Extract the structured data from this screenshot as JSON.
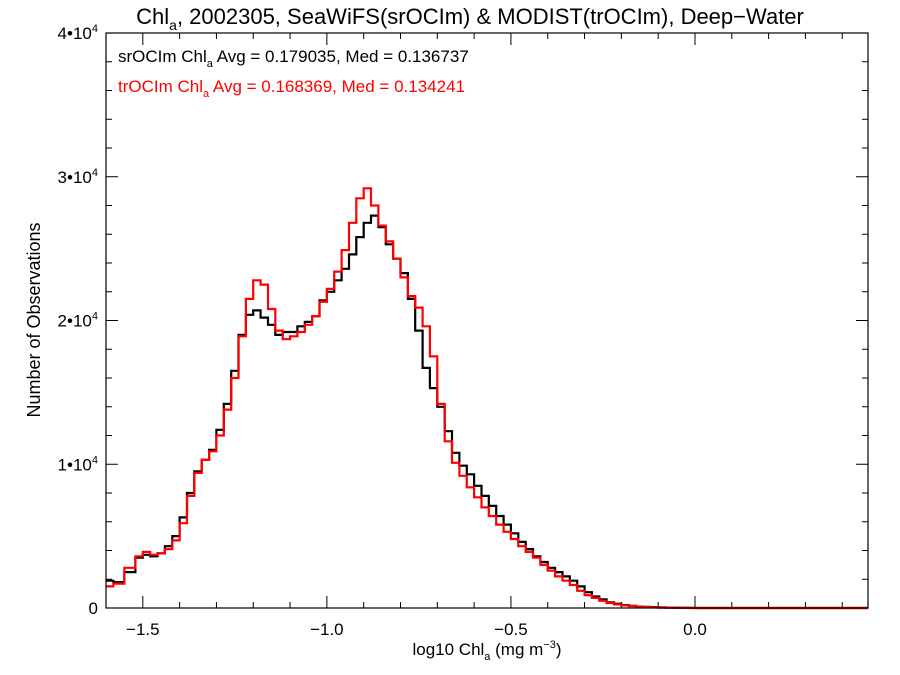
{
  "chart_data": {
    "type": "line",
    "title_main": "Chl",
    "title_sub": "a",
    "title_rest": ", 2002305, SeaWiFS(srOCIm) & MODIST(trOCIm), Deep−Water",
    "xlabel_main": "log10 Chl",
    "xlabel_sub": "a",
    "xlabel_rest": " (mg m",
    "xlabel_sup": "−3",
    "xlabel_end": ")",
    "ylabel": "Number of Observations",
    "xlim": [
      -1.6,
      0.47
    ],
    "ylim": [
      0,
      40000
    ],
    "x_ticks": [
      {
        "value": -1.5,
        "label": "−1.5"
      },
      {
        "value": -1.0,
        "label": "−1.0"
      },
      {
        "value": -0.5,
        "label": "−0.5"
      },
      {
        "value": 0.0,
        "label": "0.0"
      }
    ],
    "y_ticks": [
      {
        "value": 0,
        "base": "0",
        "exp": ""
      },
      {
        "value": 10000,
        "base": "1•10",
        "exp": "4"
      },
      {
        "value": 20000,
        "base": "2•10",
        "exp": "4"
      },
      {
        "value": 30000,
        "base": "3•10",
        "exp": "4"
      },
      {
        "value": 40000,
        "base": "4•10",
        "exp": "4"
      }
    ],
    "annotations": [
      {
        "pre": "srOCIm Chl",
        "sub": "a",
        "post": " Avg = 0.179035, Med = 0.136737",
        "color": "#000000"
      },
      {
        "pre": "trOCIm Chl",
        "sub": "a",
        "post": " Avg = 0.168369, Med = 0.134241",
        "color": "#ff0000"
      }
    ],
    "series": [
      {
        "color": "#000000",
        "x": [
          -1.6,
          -1.58,
          -1.55,
          -1.52,
          -1.5,
          -1.48,
          -1.46,
          -1.44,
          -1.42,
          -1.4,
          -1.38,
          -1.36,
          -1.34,
          -1.32,
          -1.3,
          -1.28,
          -1.26,
          -1.24,
          -1.22,
          -1.2,
          -1.18,
          -1.16,
          -1.14,
          -1.12,
          -1.1,
          -1.08,
          -1.06,
          -1.04,
          -1.02,
          -1.0,
          -0.98,
          -0.96,
          -0.94,
          -0.92,
          -0.9,
          -0.88,
          -0.86,
          -0.84,
          -0.82,
          -0.8,
          -0.78,
          -0.76,
          -0.74,
          -0.72,
          -0.7,
          -0.68,
          -0.66,
          -0.64,
          -0.62,
          -0.6,
          -0.58,
          -0.56,
          -0.54,
          -0.52,
          -0.5,
          -0.48,
          -0.46,
          -0.44,
          -0.42,
          -0.4,
          -0.38,
          -0.36,
          -0.34,
          -0.32,
          -0.3,
          -0.28,
          -0.26,
          -0.24,
          -0.22,
          -0.2,
          -0.18,
          -0.16,
          -0.14,
          -0.12,
          -0.1,
          -0.08,
          -0.06,
          -0.04,
          -0.02,
          0.0,
          0.02,
          0.04,
          0.06,
          0.08,
          0.1,
          0.12,
          0.14,
          0.16,
          0.18,
          0.2,
          0.22,
          0.24,
          0.26,
          0.28,
          0.3,
          0.32,
          0.34,
          0.36,
          0.38,
          0.4,
          0.42,
          0.44,
          0.46
        ],
        "y": [
          1900,
          1800,
          2500,
          3500,
          3700,
          3600,
          3800,
          4300,
          5000,
          6300,
          8000,
          9500,
          10300,
          11000,
          12400,
          14200,
          16500,
          19000,
          20400,
          20700,
          20200,
          19700,
          19000,
          19200,
          19200,
          19600,
          19900,
          20300,
          21400,
          22000,
          22800,
          23600,
          24600,
          25800,
          26800,
          27300,
          26500,
          25300,
          24300,
          23300,
          21500,
          19300,
          16700,
          15300,
          14000,
          12300,
          10800,
          9900,
          9300,
          8500,
          7800,
          7100,
          6400,
          5800,
          5200,
          4600,
          4100,
          3600,
          3200,
          2800,
          2500,
          2200,
          1900,
          1500,
          1100,
          800,
          600,
          400,
          300,
          200,
          150,
          100,
          80,
          60,
          40,
          30,
          20,
          10,
          5,
          0,
          0,
          0,
          0,
          0,
          0,
          0,
          0,
          0,
          0,
          0,
          0,
          0,
          0,
          0,
          0,
          0,
          0,
          0,
          0,
          0,
          0,
          0,
          0
        ],
        "note_step": "histogram"
      },
      {
        "color": "#ff0000",
        "x": [
          -1.6,
          -1.58,
          -1.55,
          -1.52,
          -1.5,
          -1.48,
          -1.46,
          -1.44,
          -1.42,
          -1.4,
          -1.38,
          -1.36,
          -1.34,
          -1.32,
          -1.3,
          -1.28,
          -1.26,
          -1.24,
          -1.22,
          -1.2,
          -1.18,
          -1.16,
          -1.14,
          -1.12,
          -1.1,
          -1.08,
          -1.06,
          -1.04,
          -1.02,
          -1.0,
          -0.98,
          -0.96,
          -0.94,
          -0.92,
          -0.9,
          -0.88,
          -0.86,
          -0.84,
          -0.82,
          -0.8,
          -0.78,
          -0.76,
          -0.74,
          -0.72,
          -0.7,
          -0.68,
          -0.66,
          -0.64,
          -0.62,
          -0.6,
          -0.58,
          -0.56,
          -0.54,
          -0.52,
          -0.5,
          -0.48,
          -0.46,
          -0.44,
          -0.42,
          -0.4,
          -0.38,
          -0.36,
          -0.34,
          -0.32,
          -0.3,
          -0.28,
          -0.26,
          -0.24,
          -0.22,
          -0.2,
          -0.18,
          -0.16,
          -0.14,
          -0.12,
          -0.1,
          -0.08,
          -0.06,
          -0.04,
          -0.02,
          0.0,
          0.02,
          0.04,
          0.06,
          0.08,
          0.1,
          0.12,
          0.14,
          0.16,
          0.18,
          0.2,
          0.22,
          0.24,
          0.26,
          0.28,
          0.3,
          0.32,
          0.34,
          0.36,
          0.38,
          0.4,
          0.42,
          0.44,
          0.46
        ],
        "y": [
          1500,
          1700,
          2800,
          3600,
          3900,
          3700,
          3800,
          4100,
          4700,
          5900,
          7800,
          9400,
          10300,
          10900,
          12000,
          13800,
          16000,
          18900,
          21500,
          22800,
          22500,
          20800,
          19300,
          18700,
          18900,
          19200,
          19700,
          20300,
          21300,
          22200,
          23400,
          24900,
          26800,
          28500,
          29200,
          28000,
          26600,
          25500,
          24300,
          23000,
          21700,
          20900,
          19600,
          17500,
          14200,
          11600,
          10100,
          9200,
          8400,
          7700,
          7000,
          6400,
          5800,
          5300,
          4800,
          4300,
          3900,
          3500,
          3000,
          2600,
          2200,
          1900,
          1600,
          1200,
          900,
          700,
          500,
          350,
          250,
          180,
          130,
          90,
          60,
          40,
          30,
          20,
          10,
          5,
          0,
          0,
          0,
          0,
          0,
          0,
          0,
          0,
          0,
          0,
          0,
          0,
          0,
          0,
          0,
          0,
          0,
          0,
          0,
          0,
          0,
          0,
          0,
          0,
          0
        ],
        "note_step": "histogram"
      }
    ]
  }
}
